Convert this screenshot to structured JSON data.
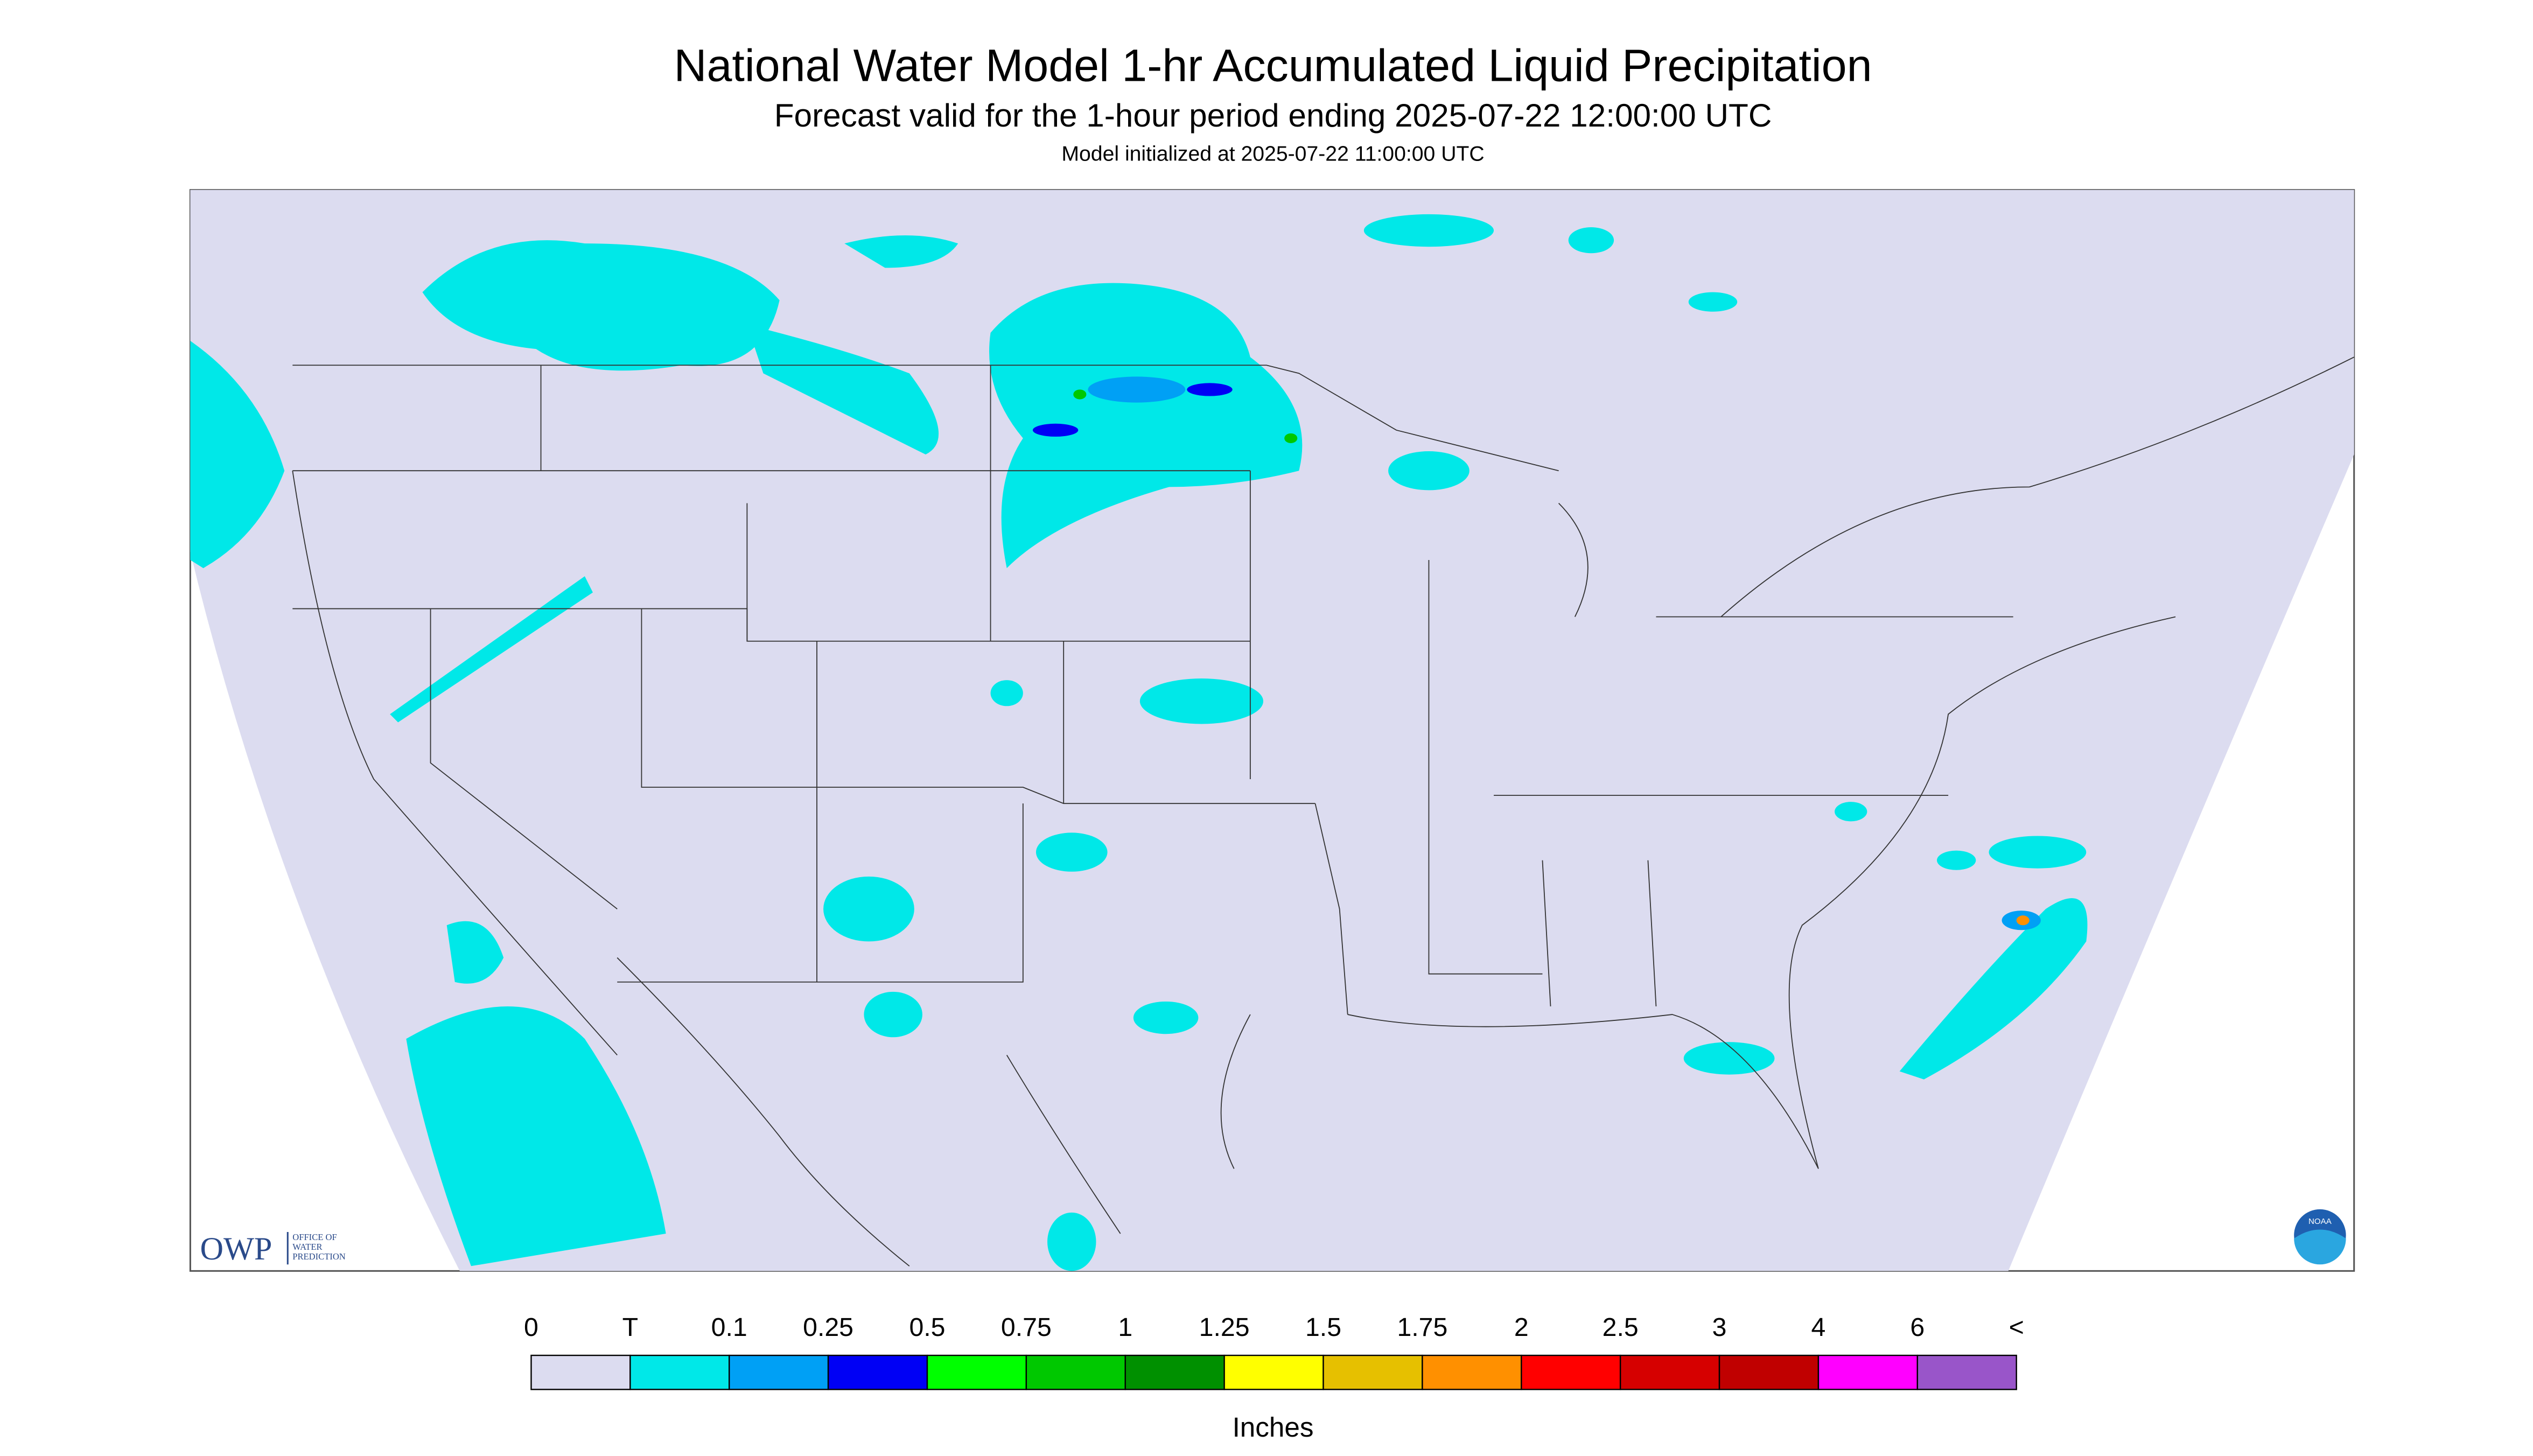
{
  "header": {
    "title": "National Water Model 1-hr Accumulated Liquid Precipitation",
    "subtitle": "Forecast valid for the 1-hour period ending 2025-07-22 12:00:00 UTC",
    "note": "Model initialized at 2025-07-22 11:00:00 UTC"
  },
  "logo": {
    "abbr": "OWP",
    "name": [
      "OFFICE OF",
      "WATER",
      "PREDICTION"
    ],
    "agency": "NOAA"
  },
  "legend": {
    "labels": [
      "0",
      "T",
      "0.1",
      "0.25",
      "0.5",
      "0.75",
      "1",
      "1.25",
      "1.5",
      "1.75",
      "2",
      "2.5",
      "3",
      "4",
      "6",
      "<"
    ],
    "colors": [
      "#dcdcf0",
      "#00e8e8",
      "#00a0f5",
      "#0000f5",
      "#00ff00",
      "#00c800",
      "#009000",
      "#ffff00",
      "#e6c000",
      "#ff9000",
      "#ff0000",
      "#d60000",
      "#c00000",
      "#ff00ff",
      "#9955c9"
    ],
    "unit": "Inches"
  }
}
